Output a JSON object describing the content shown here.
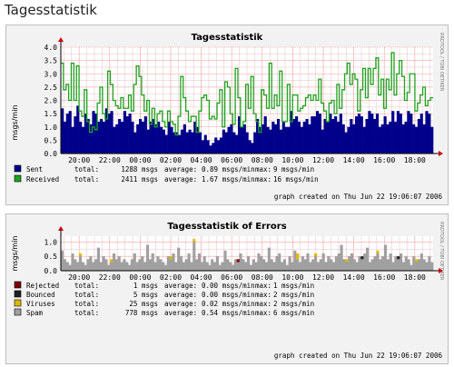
{
  "page": {
    "heading": "Tagesstatistik"
  },
  "graphs": [
    {
      "title": "Tagesstatistik",
      "ylabel": "msgs/min",
      "side_label": "RRDTOOL / TOBI OETIKER",
      "y_ticks": [
        "0.0",
        "0.5",
        "1.0",
        "1.5",
        "2.0",
        "2.5",
        "3.0",
        "3.5",
        "4.0"
      ],
      "x_ticks": [
        "20:00",
        "22:00",
        "00:00",
        "02:00",
        "04:00",
        "06:00",
        "08:00",
        "10:00",
        "12:00",
        "14:00",
        "16:00",
        "18:00"
      ],
      "footer": "graph created on Thu Jun 22 19:06:07 2006",
      "colors": {
        "sent": "#00008b",
        "received": "#1fa31f",
        "canvas": "#ffffff",
        "gridmajor": "#ff8080",
        "gridminor": "#e8c0c0"
      },
      "legend": [
        {
          "name": "Sent",
          "color": "#00008b",
          "total": "total:",
          "total_value": "1288 msgs",
          "avg_label": "average:",
          "avg_value": "0.89 msgs/min",
          "max_label": "max:",
          "max_value": "9 msgs/min"
        },
        {
          "name": "Received",
          "color": "#1fa31f",
          "total": "total:",
          "total_value": "2411 msgs",
          "avg_label": "average:",
          "avg_value": "1.67 msgs/min",
          "max_label": "max:",
          "max_value": "16 msgs/min"
        }
      ],
      "chart_data": {
        "type": "area",
        "ylim": [
          0,
          4
        ],
        "x_range": [
          "19:00",
          "19:06"
        ],
        "series": [
          {
            "name": "Sent",
            "values": [
              1.7,
              1.2,
              1.5,
              1.6,
              1.0,
              1.4,
              1.8,
              1.2,
              1.0,
              1.5,
              1.3,
              1.1,
              1.6,
              1.5,
              1.2,
              1.3,
              1.2,
              1.7,
              1.5,
              1.6,
              1.0,
              1.1,
              1.3,
              1.2,
              1.6,
              1.4,
              1.5,
              1.2,
              0.8,
              1.1,
              1.3,
              1.2,
              1.4,
              0.9,
              1.2,
              1.3,
              1.1,
              1.2,
              1.0,
              0.9,
              0.7,
              1.2,
              1.0,
              0.8,
              0.8,
              0.7,
              0.9,
              1.1,
              0.8,
              0.9,
              0.8,
              1.2,
              1.0,
              0.8,
              0.5,
              0.7,
              0.5,
              0.3,
              0.4,
              0.6,
              0.5,
              0.6,
              0.9,
              0.8,
              1.0,
              1.1,
              0.8,
              0.7,
              1.4,
              1.0,
              1.1,
              0.8,
              0.5,
              0.4,
              0.8,
              1.3,
              1.0,
              1.1,
              1.4,
              1.0,
              0.9,
              1.2,
              1.1,
              1.3,
              0.9,
              1.2,
              1.0,
              1.0,
              1.6,
              1.3,
              1.4,
              1.2,
              1.0,
              1.2,
              1.3,
              1.1,
              1.4,
              1.4,
              1.6,
              1.5,
              0.9,
              1.3,
              1.2,
              1.5,
              1.3,
              1.4,
              1.2,
              1.5,
              1.1,
              0.8,
              1.0,
              1.3,
              1.1,
              1.4,
              1.5,
              1.4,
              1.0,
              1.3,
              1.6,
              1.5,
              1.3,
              1.5,
              1.0,
              1.1,
              1.4,
              1.1,
              1.2,
              1.6,
              1.2,
              1.6,
              1.5,
              1.1,
              1.2,
              1.6,
              1.5,
              1.1,
              1.0,
              1.3,
              1.5,
              1.1,
              1.6,
              1.5,
              1.0
            ]
          },
          {
            "name": "Received",
            "values": [
              3.4,
              2.4,
              2.6,
              2.0,
              3.4,
              2.0,
              3.3,
              1.6,
              1.4,
              2.4,
              1.2,
              0.8,
              1.0,
              0.9,
              1.9,
              2.5,
              1.5,
              1.3,
              3.1,
              2.6,
              2.0,
              1.8,
              1.7,
              2.1,
              1.7,
              1.7,
              2.2,
              1.6,
              2.6,
              3.3,
              2.9,
              2.2,
              1.6,
              2.0,
              1.1,
              1.7,
              1.0,
              1.5,
              1.6,
              1.2,
              1.0,
              1.6,
              1.2,
              1.1,
              0.7,
              1.4,
              2.9,
              2.1,
              1.6,
              1.2,
              1.4,
              1.4,
              0.8,
              1.6,
              2.1,
              2.2,
              2.0,
              1.3,
              1.4,
              1.3,
              1.9,
              2.4,
              1.0,
              2.7,
              2.5,
              1.5,
              1.1,
              3.2,
              2.1,
              1.0,
              1.2,
              2.6,
              1.7,
              2.9,
              1.5,
              1.2,
              0.8,
              2.4,
              2.2,
              1.7,
              3.4,
              1.7,
              2.2,
              1.8,
              3.1,
              1.2,
              1.2,
              2.6,
              1.2,
              2.2,
              2.2,
              1.6,
              1.7,
              1.8,
              2.1,
              2.2,
              2.0,
              2.2,
              2.0,
              2.8,
              1.9,
              1.6,
              1.2,
              1.9,
              2.0,
              1.5,
              2.6,
              1.7,
              2.4,
              3.0,
              3.4,
              2.6,
              3.0,
              2.8,
              1.6,
              2.4,
              3.2,
              2.1,
              3.2,
              2.6,
              3.2,
              3.6,
              2.2,
              2.8,
              1.7,
              2.8,
              2.4,
              3.8,
              2.2,
              3.0,
              3.5,
              2.9,
              2.0,
              2.3,
              3.0,
              3.0,
              1.6,
              1.9,
              2.2,
              2.5,
              1.8,
              2.0,
              2.1
            ]
          }
        ]
      }
    },
    {
      "title": "Tagesstatistik of Errors",
      "ylabel": "msgs/min",
      "side_label": "RRDTOOL / TOBI OETIKER",
      "y_ticks": [
        "0.0",
        "0.5",
        "1.0"
      ],
      "x_ticks": [
        "20:00",
        "22:00",
        "00:00",
        "02:00",
        "04:00",
        "06:00",
        "08:00",
        "10:00",
        "12:00",
        "14:00",
        "16:00",
        "18:00"
      ],
      "footer": "graph created on Thu Jun 22 19:06:07 2006",
      "colors": {
        "rejected": "#7a0000",
        "bounced": "#202020",
        "viruses": "#ddb800",
        "spam": "#a0a0a0",
        "canvas": "#ffffff",
        "gridmajor": "#ff8080",
        "gridminor": "#e8c0c0"
      },
      "legend": [
        {
          "name": "Rejected",
          "color": "#7a0000",
          "total": "total:",
          "total_value": "1 msgs",
          "avg_label": "average:",
          "avg_value": "0.00 msgs/min",
          "max_label": "max:",
          "max_value": "1 msgs/min"
        },
        {
          "name": "Bounced",
          "color": "#202020",
          "total": "total:",
          "total_value": "5 msgs",
          "avg_label": "average:",
          "avg_value": "0.00 msgs/min",
          "max_label": "max:",
          "max_value": "2 msgs/min"
        },
        {
          "name": "Viruses",
          "color": "#ddb800",
          "total": "total:",
          "total_value": "25 msgs",
          "avg_label": "average:",
          "avg_value": "0.02 msgs/min",
          "max_label": "max:",
          "max_value": "2 msgs/min"
        },
        {
          "name": "Spam",
          "color": "#a0a0a0",
          "total": "total:",
          "total_value": "778 msgs",
          "avg_label": "average:",
          "avg_value": "0.54 msgs/min",
          "max_label": "max:",
          "max_value": "6 msgs/min"
        }
      ],
      "chart_data": {
        "type": "bar",
        "ylim": [
          0,
          1.2
        ],
        "x_range": [
          "19:00",
          "19:06"
        ],
        "series": [
          {
            "name": "Spam",
            "values": [
              0.7,
              0.4,
              0.3,
              0.2,
              0.6,
              0.4,
              0.3,
              0.5,
              0.3,
              0.2,
              0.4,
              0.5,
              0.3,
              0.4,
              0.8,
              0.3,
              0.5,
              0.4,
              0.2,
              0.3,
              0.6,
              0.4,
              0.5,
              0.3,
              0.4,
              0.3,
              0.2,
              0.4,
              0.6,
              0.3,
              0.4,
              0.5,
              0.3,
              0.9,
              0.4,
              0.6,
              0.3,
              0.5,
              0.4,
              0.3,
              0.2,
              0.5,
              0.4,
              0.6,
              0.3,
              0.8,
              0.5,
              0.3,
              0.4,
              0.6,
              0.3,
              1.0,
              0.4,
              0.6,
              0.3,
              0.5,
              0.3,
              0.2,
              0.4,
              0.3,
              0.5,
              0.2,
              0.3,
              0.7,
              0.4,
              0.3,
              0.2,
              0.4,
              0.3,
              0.6,
              0.4,
              0.3,
              0.5,
              0.2,
              0.4,
              0.3,
              0.6,
              0.5,
              0.4,
              0.3,
              0.8,
              0.4,
              0.3,
              0.5,
              0.6,
              0.3,
              0.4,
              0.2,
              0.5,
              0.3,
              0.7,
              0.4,
              0.3,
              0.5,
              0.4,
              0.6,
              0.3,
              0.4,
              0.5,
              0.3,
              0.4,
              0.6,
              0.3,
              0.5,
              0.4,
              0.3,
              0.5,
              0.6,
              0.9,
              0.4,
              0.3,
              0.5,
              0.6,
              0.4,
              0.3,
              0.5,
              0.4,
              0.6,
              0.8,
              0.3,
              0.4,
              0.5,
              0.6,
              0.4,
              0.5,
              0.9,
              0.4,
              0.6,
              0.3,
              0.5,
              0.4,
              0.6,
              0.3,
              0.5,
              0.4,
              0.2,
              0.5,
              0.3,
              0.4,
              0.6,
              0.4,
              0.3,
              0.5,
              0.3
            ]
          },
          {
            "name": "Viruses",
            "values": [
              0,
              0,
              0,
              0,
              0,
              0,
              0,
              0.1,
              0,
              0,
              0,
              0,
              0,
              0,
              0,
              0,
              0,
              0,
              0,
              0.1,
              0,
              0,
              0,
              0,
              0,
              0,
              0,
              0,
              0,
              0,
              0,
              0,
              0,
              0,
              0,
              0,
              0,
              0,
              0,
              0,
              0,
              0,
              0.1,
              0,
              0,
              0,
              0,
              0,
              0,
              0,
              0,
              0.1,
              0,
              0,
              0,
              0,
              0,
              0,
              0,
              0,
              0,
              0,
              0,
              0,
              0,
              0,
              0,
              0,
              0,
              0,
              0,
              0,
              0,
              0,
              0,
              0,
              0,
              0,
              0,
              0,
              0,
              0,
              0,
              0,
              0,
              0,
              0,
              0,
              0,
              0,
              0,
              0.2,
              0,
              0,
              0,
              0,
              0,
              0,
              0.1,
              0,
              0,
              0,
              0,
              0,
              0,
              0,
              0,
              0,
              0,
              0,
              0.1,
              0,
              0,
              0,
              0,
              0,
              0,
              0,
              0,
              0,
              0,
              0,
              0.1,
              0,
              0,
              0,
              0,
              0,
              0,
              0,
              0,
              0,
              0,
              0,
              0,
              0,
              0,
              0.1,
              0,
              0,
              0,
              0,
              0
            ]
          },
          {
            "name": "Bounced",
            "values": [
              0,
              0,
              0,
              0,
              0,
              0,
              0,
              0,
              0,
              0,
              0,
              0,
              0,
              0,
              0,
              0,
              0,
              0,
              0,
              0,
              0,
              0,
              0,
              0,
              0,
              0,
              0,
              0,
              0,
              0,
              0,
              0,
              0,
              0,
              0,
              0,
              0,
              0,
              0,
              0,
              0,
              0,
              0,
              0,
              0,
              0,
              0,
              0,
              0,
              0,
              0,
              0,
              0,
              0,
              0,
              0,
              0,
              0,
              0,
              0,
              0,
              0,
              0,
              0,
              0,
              0,
              0,
              0,
              0,
              0,
              0,
              0,
              0,
              0,
              0,
              0,
              0,
              0,
              0,
              0,
              0,
              0,
              0,
              0,
              0,
              0,
              0,
              0,
              0,
              0,
              0,
              0,
              0,
              0,
              0,
              0,
              0,
              0,
              0,
              0,
              0,
              0,
              0,
              0,
              0,
              0,
              0,
              0,
              0,
              0,
              0,
              0,
              0,
              0,
              0,
              0,
              0.1,
              0,
              0,
              0,
              0,
              0,
              0,
              0,
              0,
              0,
              0,
              0,
              0,
              0,
              0.1,
              0,
              0,
              0,
              0,
              0,
              0,
              0,
              0,
              0,
              0,
              0,
              0,
              0,
              0
            ]
          },
          {
            "name": "Rejected",
            "values": [
              0,
              0,
              0,
              0,
              0,
              0,
              0,
              0,
              0,
              0,
              0,
              0,
              0,
              0,
              0,
              0,
              0,
              0,
              0,
              0,
              0,
              0,
              0,
              0,
              0,
              0,
              0,
              0,
              0,
              0,
              0,
              0,
              0,
              0,
              0,
              0,
              0,
              0,
              0,
              0,
              0,
              0,
              0,
              0,
              0,
              0,
              0,
              0,
              0,
              0,
              0,
              0,
              0,
              0,
              0,
              0,
              0,
              0,
              0,
              0,
              0,
              0,
              0,
              0,
              0,
              0,
              0,
              0,
              0.1,
              0,
              0,
              0,
              0,
              0,
              0,
              0,
              0,
              0,
              0,
              0,
              0,
              0,
              0,
              0,
              0,
              0,
              0,
              0,
              0,
              0,
              0,
              0,
              0,
              0,
              0,
              0,
              0,
              0,
              0,
              0,
              0,
              0,
              0,
              0,
              0,
              0,
              0,
              0,
              0,
              0,
              0,
              0,
              0,
              0,
              0,
              0,
              0,
              0,
              0,
              0,
              0,
              0,
              0,
              0,
              0,
              0,
              0,
              0,
              0,
              0,
              0,
              0,
              0,
              0,
              0,
              0,
              0,
              0,
              0,
              0,
              0,
              0,
              0,
              0
            ]
          }
        ]
      }
    }
  ]
}
